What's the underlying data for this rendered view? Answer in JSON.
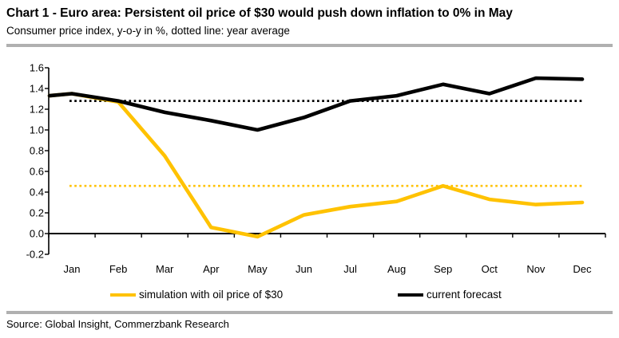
{
  "header": {
    "title": "Chart 1 - Euro area: Persistent oil price of $30 would push down inflation to 0% in May",
    "subtitle": "Consumer price index, y-o-y in %, dotted line: year average"
  },
  "footer": {
    "source": "Source: Global Insight, Commerzbank Research"
  },
  "colors": {
    "simulation": "#FFC200",
    "forecast": "#000000",
    "rule": "#B0B0B0",
    "axis": "#000000",
    "text": "#000000"
  },
  "chart_data": {
    "type": "line",
    "title": "Chart 1 - Euro area: Persistent oil price of $30 would push down inflation to 0% in May",
    "subtitle": "Consumer price index, y-o-y in %, dotted line: year average",
    "categories": [
      "Jan",
      "Feb",
      "Mar",
      "Apr",
      "May",
      "Jun",
      "Jul",
      "Aug",
      "Sep",
      "Oct",
      "Nov",
      "Dec"
    ],
    "series": [
      {
        "name": "simulation with oil price of $30",
        "color_key": "simulation",
        "values": [
          1.35,
          1.27,
          0.75,
          0.06,
          -0.03,
          0.18,
          0.26,
          0.31,
          0.46,
          0.33,
          0.28,
          0.3
        ],
        "year_average": 0.46,
        "average_line_style": "dotted",
        "lead_in_value": 1.33
      },
      {
        "name": "current forecast",
        "color_key": "forecast",
        "values": [
          1.35,
          1.28,
          1.17,
          1.09,
          1.0,
          1.12,
          1.28,
          1.33,
          1.44,
          1.35,
          1.5,
          1.49
        ],
        "year_average": 1.28,
        "average_line_style": "dotted",
        "lead_in_value": 1.33
      }
    ],
    "ylim": [
      -0.2,
      1.6
    ],
    "ytick_step": 0.2,
    "ytick_labels": [
      "-0.2",
      "0.0",
      "0.2",
      "0.4",
      "0.6",
      "0.8",
      "1.0",
      "1.2",
      "1.4",
      "1.6"
    ],
    "grid": false,
    "legend_position": "bottom"
  }
}
